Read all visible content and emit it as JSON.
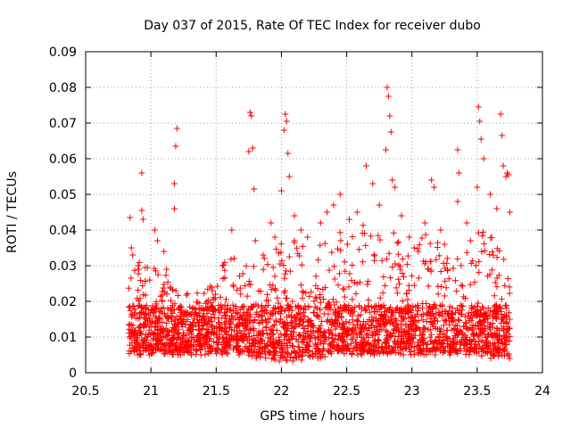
{
  "chart_data": {
    "type": "scatter",
    "title": "Day 037 of 2015, Rate Of TEC Index for receiver dubo",
    "xlabel": "GPS time / hours",
    "ylabel": "ROTI / TECUs",
    "xlim": [
      20.5,
      24
    ],
    "ylim": [
      0,
      0.09
    ],
    "x_ticks": [
      20.5,
      21,
      21.5,
      22,
      22.5,
      23,
      23.5,
      24
    ],
    "x_tick_labels": [
      "20.5",
      "21",
      "21.5",
      "22",
      "22.5",
      "23",
      "23.5",
      "24"
    ],
    "y_ticks": [
      0,
      0.01,
      0.02,
      0.03,
      0.04,
      0.05,
      0.06,
      0.07,
      0.08,
      0.09
    ],
    "y_tick_labels": [
      "0",
      "0.01",
      "0.02",
      "0.03",
      "0.04",
      "0.05",
      "0.06",
      "0.07",
      "0.08",
      "0.09"
    ],
    "grid": true,
    "marker": "plus",
    "color": "#ff0000",
    "series": [
      {
        "x_range": [
          20.83,
          23.75
        ],
        "points": [
          [
            20.84,
            0.0435
          ],
          [
            20.85,
            0.035
          ],
          [
            20.86,
            0.033
          ],
          [
            20.93,
            0.056
          ],
          [
            20.93,
            0.0455
          ],
          [
            20.94,
            0.043
          ],
          [
            21.03,
            0.04
          ],
          [
            21.05,
            0.037
          ],
          [
            21.1,
            0.034
          ],
          [
            21.12,
            0.029
          ],
          [
            21.18,
            0.053
          ],
          [
            21.18,
            0.046
          ],
          [
            21.19,
            0.0635
          ],
          [
            21.2,
            0.0685
          ],
          [
            21.47,
            0.023
          ],
          [
            21.55,
            0.03
          ],
          [
            21.62,
            0.04
          ],
          [
            21.75,
            0.062
          ],
          [
            21.76,
            0.073
          ],
          [
            21.77,
            0.072
          ],
          [
            21.78,
            0.063
          ],
          [
            21.79,
            0.0515
          ],
          [
            21.8,
            0.037
          ],
          [
            21.86,
            0.033
          ],
          [
            21.92,
            0.042
          ],
          [
            21.95,
            0.038
          ],
          [
            22.0,
            0.051
          ],
          [
            22.02,
            0.068
          ],
          [
            22.03,
            0.0725
          ],
          [
            22.04,
            0.0705
          ],
          [
            22.05,
            0.0615
          ],
          [
            22.06,
            0.055
          ],
          [
            22.1,
            0.044
          ],
          [
            22.15,
            0.04
          ],
          [
            22.2,
            0.038
          ],
          [
            22.3,
            0.042
          ],
          [
            22.35,
            0.045
          ],
          [
            22.4,
            0.047
          ],
          [
            22.45,
            0.05
          ],
          [
            22.52,
            0.043
          ],
          [
            22.58,
            0.045
          ],
          [
            22.65,
            0.058
          ],
          [
            22.7,
            0.053
          ],
          [
            22.75,
            0.047
          ],
          [
            22.8,
            0.0625
          ],
          [
            22.81,
            0.08
          ],
          [
            22.82,
            0.0775
          ],
          [
            22.83,
            0.072
          ],
          [
            22.84,
            0.0675
          ],
          [
            22.85,
            0.054
          ],
          [
            22.87,
            0.052
          ],
          [
            22.92,
            0.044
          ],
          [
            22.98,
            0.038
          ],
          [
            23.05,
            0.034
          ],
          [
            23.1,
            0.042
          ],
          [
            23.15,
            0.054
          ],
          [
            23.17,
            0.052
          ],
          [
            23.22,
            0.04
          ],
          [
            23.25,
            0.036
          ],
          [
            23.35,
            0.048
          ],
          [
            23.35,
            0.0625
          ],
          [
            23.36,
            0.056
          ],
          [
            23.42,
            0.042
          ],
          [
            23.5,
            0.052
          ],
          [
            23.51,
            0.0745
          ],
          [
            23.52,
            0.0705
          ],
          [
            23.53,
            0.0655
          ],
          [
            23.55,
            0.06
          ],
          [
            23.6,
            0.05
          ],
          [
            23.65,
            0.046
          ],
          [
            23.68,
            0.0725
          ],
          [
            23.69,
            0.0665
          ],
          [
            23.7,
            0.058
          ],
          [
            23.72,
            0.055
          ],
          [
            23.73,
            0.056
          ],
          [
            23.74,
            0.0555
          ],
          [
            23.75,
            0.045
          ]
        ],
        "profile": [
          [
            20.83,
            0.0045,
            0.025
          ],
          [
            20.9,
            0.005,
            0.032
          ],
          [
            21.0,
            0.005,
            0.03
          ],
          [
            21.1,
            0.005,
            0.028
          ],
          [
            21.2,
            0.005,
            0.024
          ],
          [
            21.3,
            0.005,
            0.023
          ],
          [
            21.4,
            0.005,
            0.024
          ],
          [
            21.5,
            0.005,
            0.025
          ],
          [
            21.6,
            0.005,
            0.035
          ],
          [
            21.7,
            0.005,
            0.03
          ],
          [
            21.8,
            0.004,
            0.032
          ],
          [
            21.9,
            0.004,
            0.035
          ],
          [
            22.0,
            0.003,
            0.04
          ],
          [
            22.1,
            0.003,
            0.04
          ],
          [
            22.2,
            0.004,
            0.036
          ],
          [
            22.3,
            0.004,
            0.038
          ],
          [
            22.4,
            0.005,
            0.04
          ],
          [
            22.5,
            0.005,
            0.042
          ],
          [
            22.6,
            0.005,
            0.042
          ],
          [
            22.7,
            0.005,
            0.04
          ],
          [
            22.8,
            0.005,
            0.042
          ],
          [
            22.9,
            0.005,
            0.038
          ],
          [
            23.0,
            0.005,
            0.035
          ],
          [
            23.1,
            0.005,
            0.04
          ],
          [
            23.2,
            0.005,
            0.038
          ],
          [
            23.3,
            0.005,
            0.03
          ],
          [
            23.4,
            0.005,
            0.035
          ],
          [
            23.5,
            0.005,
            0.04
          ],
          [
            23.6,
            0.004,
            0.04
          ],
          [
            23.7,
            0.0035,
            0.036
          ],
          [
            23.75,
            0.0035,
            0.03
          ]
        ]
      }
    ]
  }
}
